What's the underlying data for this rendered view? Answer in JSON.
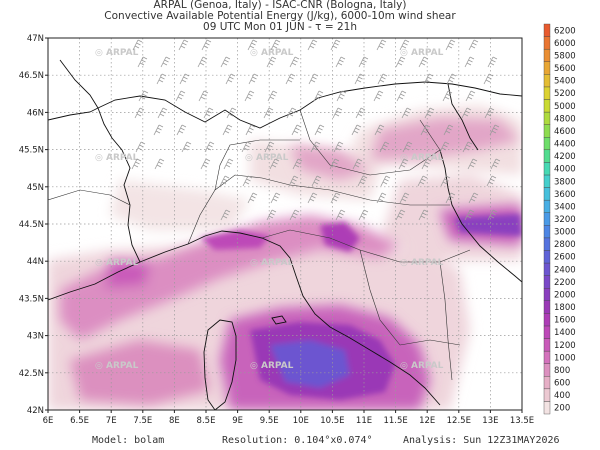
{
  "header": {
    "line1": "ARPAL (Genoa, Italy)  -  ISAC-CNR (Bologna, Italy)",
    "line2": "Convective Available Potential Energy (J/kg), 6000-10m wind shear",
    "line3": "09 UTC Mon 01 JUN  -  τ = 21h"
  },
  "footer": {
    "model": "Model: bolam",
    "resolution": "Resolution: 0.104°x0.074°",
    "analysis": "Analysis: Sun 12Z31MAY2026"
  },
  "watermark": "ARPAL",
  "map": {
    "lat_ticks": [
      "47N",
      "46.5N",
      "46N",
      "45.5N",
      "45N",
      "44.5N",
      "44N",
      "43.5N",
      "43N",
      "42.5N",
      "42N"
    ],
    "lon_ticks": [
      "6E",
      "6.5E",
      "7E",
      "7.5E",
      "8E",
      "8.5E",
      "9E",
      "9.5E",
      "10E",
      "10.5E",
      "11E",
      "11.5E",
      "12E",
      "12.5E",
      "13E",
      "13.5E"
    ],
    "lat_range": [
      42,
      47
    ],
    "lon_range": [
      6,
      13.5
    ]
  },
  "colorbar": {
    "levels": [
      "200",
      "400",
      "600",
      "800",
      "1000",
      "1200",
      "1400",
      "1600",
      "1800",
      "2000",
      "2200",
      "2400",
      "2600",
      "2800",
      "3000",
      "3200",
      "3400",
      "3600",
      "3800",
      "4000",
      "4200",
      "4400",
      "4600",
      "4800",
      "5000",
      "5200",
      "5400",
      "5600",
      "5800",
      "6000",
      "6200"
    ],
    "colors": [
      "#f3e3e3",
      "#ecc9d2",
      "#e6afc6",
      "#dc90bf",
      "#d472bc",
      "#c95ab9",
      "#bd49b8",
      "#ad3db6",
      "#9a39b6",
      "#8a3fbf",
      "#7a48c8",
      "#6c55d0",
      "#5f63d8",
      "#5573df",
      "#4d86e4",
      "#4a9ae6",
      "#48aee4",
      "#46c0dc",
      "#45cfcc",
      "#46d9b3",
      "#52dc8f",
      "#6ede6a",
      "#8edc50",
      "#aedb3e",
      "#cadb33",
      "#dcd232",
      "#e4bd34",
      "#e8a634",
      "#ea8e33",
      "#e97531",
      "#e85a2e"
    ]
  }
}
